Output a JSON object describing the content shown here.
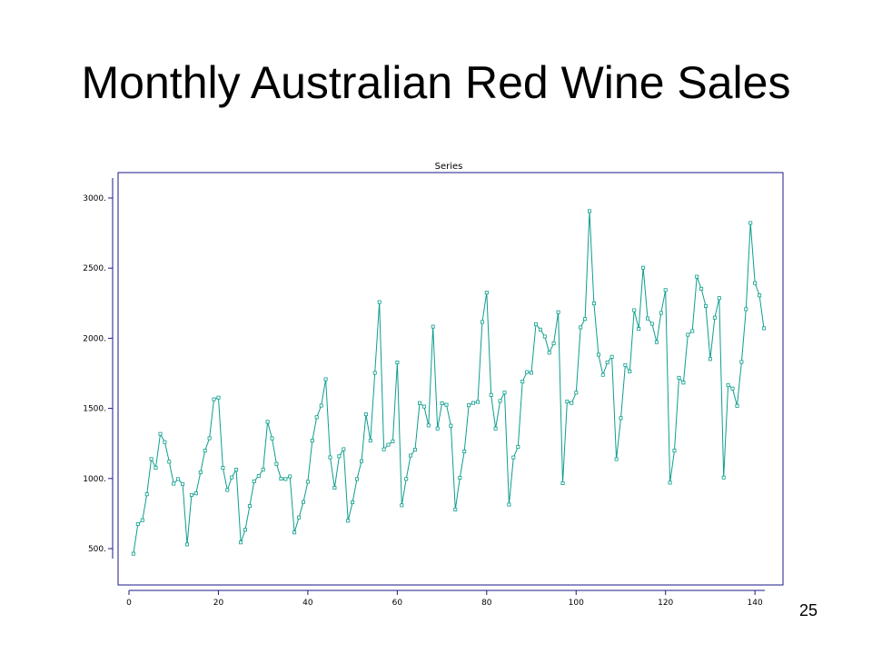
{
  "slide": {
    "title": "Monthly Australian Red Wine Sales",
    "page_number": "25"
  },
  "colors": {
    "series": "#0e9e8e",
    "frame": "#1a1a8a",
    "axis": "#1a1a8a"
  },
  "chart_data": {
    "type": "line",
    "title": "Series",
    "xlabel": "",
    "ylabel": "",
    "xlim": [
      0,
      144
    ],
    "ylim": [
      300,
      3250
    ],
    "x_ticks": [
      0,
      20,
      40,
      60,
      80,
      100,
      120,
      140
    ],
    "x_tick_labels": [
      "0",
      "20",
      "40",
      "60",
      "80",
      "100",
      "120",
      "140"
    ],
    "y_ticks": [
      500,
      1000,
      1500,
      2000,
      2500,
      3000
    ],
    "y_tick_labels": [
      "500.",
      "1000.",
      "1500.",
      "2000.",
      "2500.",
      "3000."
    ],
    "grid": false,
    "markers": "open-square",
    "series": [
      {
        "x_start": 1,
        "values": [
          464,
          675,
          703,
          887,
          1139,
          1077,
          1318,
          1260,
          1120,
          963,
          996,
          960,
          530,
          883,
          894,
          1045,
          1199,
          1287,
          1565,
          1577,
          1076,
          918,
          1008,
          1063,
          544,
          635,
          804,
          980,
          1018,
          1064,
          1404,
          1286,
          1104,
          999,
          996,
          1015,
          615,
          722,
          832,
          977,
          1270,
          1437,
          1520,
          1708,
          1151,
          934,
          1159,
          1209,
          699,
          830,
          996,
          1124,
          1458,
          1270,
          1753,
          2258,
          1208,
          1241,
          1265,
          1828,
          809,
          997,
          1164,
          1205,
          1538,
          1513,
          1378,
          2083,
          1357,
          1536,
          1526,
          1376,
          779,
          1005,
          1193,
          1522,
          1539,
          1546,
          2116,
          2326,
          1596,
          1356,
          1553,
          1613,
          814,
          1150,
          1225,
          1691,
          1759,
          1754,
          2100,
          2062,
          2012,
          1897,
          1964,
          2186,
          966,
          1549,
          1538,
          1612,
          2078,
          2137,
          2907,
          2249,
          1883,
          1739,
          1828,
          1868,
          1138,
          1430,
          1809,
          1763,
          2200,
          2067,
          2503,
          2141,
          2103,
          1972,
          2181,
          2344,
          970,
          1199,
          1718,
          1683,
          2025,
          2051,
          2439,
          2353,
          2230,
          1852,
          2147,
          2286,
          1007,
          1665,
          1642,
          1518,
          1831,
          2207,
          2822,
          2393,
          2306,
          2071
        ]
      }
    ]
  }
}
